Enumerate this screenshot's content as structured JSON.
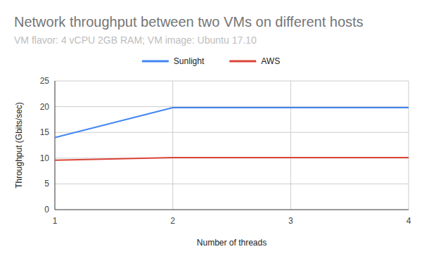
{
  "chart_data": {
    "type": "line",
    "title": "Network throughput between two VMs on different hosts",
    "subtitle": "VM flavor: 4 vCPU 2GB RAM; VM image: Ubuntu 17.10",
    "x_label": "Number of threads",
    "y_label": "Throughput (Gbits/sec)",
    "x": [
      1,
      2,
      3,
      4
    ],
    "series": [
      {
        "name": "Sunlight",
        "color": "#4285f4",
        "values": [
          14,
          19.8,
          19.8,
          19.8
        ]
      },
      {
        "name": "AWS",
        "color": "#db4437",
        "values": [
          9.6,
          10.1,
          10.1,
          10.1
        ]
      }
    ],
    "xlim": [
      1,
      4
    ],
    "xticks": [
      1,
      2,
      3,
      4
    ],
    "ylim": [
      0,
      25
    ],
    "yticks": [
      0,
      5,
      10,
      15,
      20,
      25
    ],
    "grid": true,
    "legend": "top"
  }
}
